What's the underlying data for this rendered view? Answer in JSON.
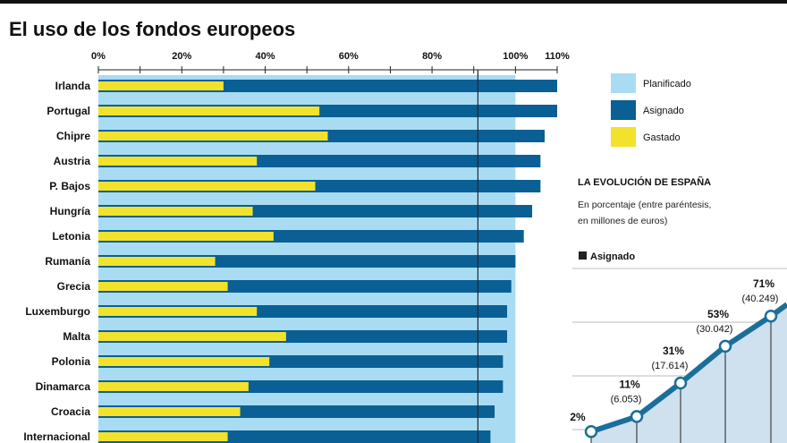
{
  "colors": {
    "planned": "#a9dcf3",
    "assigned": "#0a5f94",
    "spent": "#f2e22c",
    "line": "#1a6f9a",
    "area": "#cfe0ee"
  },
  "chart_data": [
    {
      "type": "bar",
      "title": "El uso de los fondos europeos",
      "xlim": [
        0,
        110
      ],
      "tick_labels": [
        "0%",
        "20%",
        "40%",
        "60%",
        "80%",
        "100%",
        "110%"
      ],
      "legend": [
        "Planificado",
        "Asignado",
        "Gastado"
      ],
      "legend_position": "top-right",
      "categories": [
        "Irlanda",
        "Portugal",
        "Chipre",
        "Austria",
        "P. Bajos",
        "Hungría",
        "Letonia",
        "Rumanía",
        "Grecia",
        "Luxemburgo",
        "Malta",
        "Polonia",
        "Dinamarca",
        "Croacia",
        "Internacional"
      ],
      "series": [
        {
          "name": "Planificado",
          "values": [
            100,
            100,
            100,
            100,
            100,
            100,
            100,
            100,
            100,
            100,
            100,
            100,
            100,
            100,
            100
          ]
        },
        {
          "name": "Asignado",
          "values": [
            110,
            110,
            107,
            106,
            106,
            104,
            102,
            100,
            99,
            98,
            98,
            97,
            97,
            95,
            94
          ]
        },
        {
          "name": "Gastado",
          "values": [
            30,
            53,
            55,
            38,
            52,
            37,
            42,
            28,
            31,
            38,
            45,
            41,
            36,
            34,
            31
          ]
        }
      ],
      "reference_line": 91
    },
    {
      "type": "line",
      "title": "LA EVOLUCIÓN DE ESPAÑA",
      "subtitle_lines": [
        "En porcentaje (entre paréntesis,",
        "en millones de euros)"
      ],
      "legend": "Asignado",
      "series": [
        {
          "name": "Asignado",
          "values": [
            2,
            11,
            31,
            53,
            71
          ],
          "labels": [
            "2%",
            "11%",
            "31%",
            "53%",
            "71%"
          ],
          "amounts": [
            "",
            "(6.053)",
            "(17.614)",
            "(30.042)",
            "(40.249)"
          ]
        }
      ]
    }
  ]
}
